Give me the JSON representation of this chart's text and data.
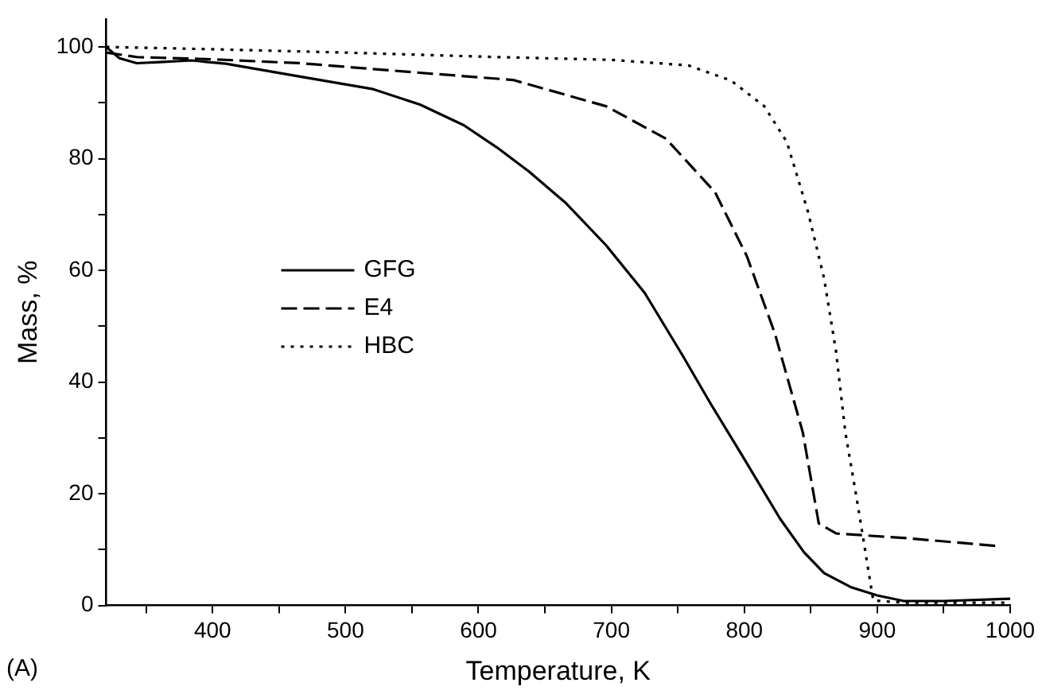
{
  "chart_data": {
    "type": "line",
    "xlabel": "Temperature, K",
    "ylabel": "Mass, %",
    "annotations": [
      "(A)"
    ],
    "xlim": [
      320,
      1000
    ],
    "ylim": [
      0,
      105
    ],
    "xticks": [
      {
        "value": 350,
        "label": null
      },
      400,
      {
        "value": 450,
        "label": null
      },
      500,
      {
        "value": 550,
        "label": null
      },
      600,
      {
        "value": 650,
        "label": null
      },
      700,
      {
        "value": 750,
        "label": null
      },
      800,
      {
        "value": 850,
        "label": null
      },
      900,
      {
        "value": 950,
        "label": null
      },
      1000
    ],
    "yticks": [
      0,
      {
        "value": 10,
        "label": null
      },
      20,
      {
        "value": 30,
        "label": null
      },
      40,
      {
        "value": 50,
        "label": null
      },
      60,
      {
        "value": 70,
        "label": null
      },
      80,
      {
        "value": 90,
        "label": null
      },
      100
    ],
    "grid": false,
    "legend": "left",
    "marker": "none",
    "series": [
      {
        "name": "GFG",
        "color": "#000000",
        "line_style": "solid",
        "x": [
          320,
          330,
          343,
          360,
          384,
          410,
          466,
          520,
          556,
          589,
          614,
          638,
          666,
          696,
          725,
          753,
          775,
          798,
          827,
          845,
          860,
          880,
          900,
          920,
          950,
          1000
        ],
        "values": [
          100,
          98,
          97.1,
          97.3,
          97.6,
          97,
          94.7,
          92.5,
          89.7,
          86,
          82,
          77.7,
          72,
          64.5,
          56,
          45,
          36,
          27,
          15.5,
          9.5,
          5.8,
          3.3,
          1.8,
          0.8,
          0.8,
          1.2
        ]
      },
      {
        "name": "E4",
        "color": "#000000",
        "line_style": "dashed",
        "x": [
          320,
          343,
          400,
          466,
          550,
          626,
          696,
          741,
          778,
          802,
          823,
          844,
          856,
          869,
          925,
          992
        ],
        "values": [
          99,
          98.2,
          97.8,
          97.1,
          95.5,
          94.1,
          89.4,
          83.6,
          74,
          62.5,
          48.7,
          31,
          14.7,
          12.9,
          12,
          10.6
        ]
      },
      {
        "name": "HBC",
        "color": "#000000",
        "line_style": "dotted",
        "x": [
          320,
          400,
          500,
          614,
          700,
          758,
          790,
          815,
          832,
          848,
          860,
          869,
          876,
          885,
          897,
          920,
          1000
        ],
        "values": [
          100,
          99.6,
          99,
          98.2,
          97.7,
          96.7,
          94,
          89.4,
          83,
          70.4,
          58.6,
          45.5,
          31,
          18.5,
          0.9,
          0.5,
          0.5
        ]
      }
    ]
  }
}
